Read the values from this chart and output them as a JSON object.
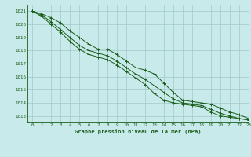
{
  "title": "Graphe pression niveau de la mer (hPa)",
  "bg_color": "#c8eaea",
  "grid_color": "#a0c8c8",
  "line_color": "#1a5c1a",
  "xlim": [
    -0.5,
    23
  ],
  "ylim": [
    1012.5,
    1021.5
  ],
  "yticks": [
    1013,
    1014,
    1015,
    1016,
    1017,
    1018,
    1019,
    1020,
    1021
  ],
  "xticks": [
    0,
    1,
    2,
    3,
    4,
    5,
    6,
    7,
    8,
    9,
    10,
    11,
    12,
    13,
    14,
    15,
    16,
    17,
    18,
    19,
    20,
    21,
    22,
    23
  ],
  "series": [
    [
      1021.0,
      1020.8,
      1020.5,
      1020.1,
      1019.5,
      1019.0,
      1018.5,
      1018.1,
      1018.1,
      1017.7,
      1017.2,
      1016.7,
      1016.5,
      1016.2,
      1015.5,
      1014.8,
      1014.2,
      1014.1,
      1014.0,
      1013.9,
      1013.6,
      1013.3,
      1013.1,
      1012.8
    ],
    [
      1021.0,
      1020.7,
      1020.2,
      1019.6,
      1019.0,
      1018.4,
      1018.0,
      1017.8,
      1017.6,
      1017.2,
      1016.7,
      1016.2,
      1015.8,
      1015.3,
      1014.8,
      1014.3,
      1014.0,
      1013.9,
      1013.8,
      1013.5,
      1013.2,
      1013.0,
      1012.8,
      1012.7
    ],
    [
      1021.0,
      1020.6,
      1020.0,
      1019.4,
      1018.7,
      1018.1,
      1017.7,
      1017.5,
      1017.3,
      1016.9,
      1016.4,
      1015.9,
      1015.4,
      1014.7,
      1014.2,
      1014.0,
      1013.9,
      1013.8,
      1013.7,
      1013.3,
      1013.0,
      1012.9,
      1012.8,
      1012.7
    ]
  ]
}
